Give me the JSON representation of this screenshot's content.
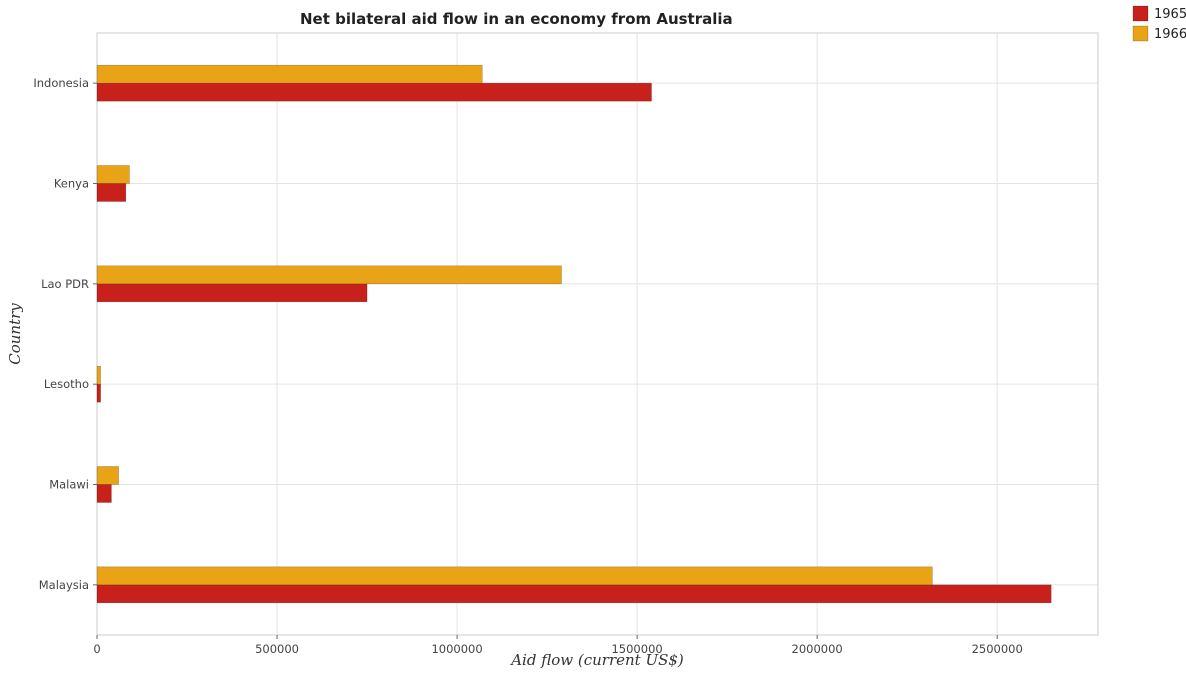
{
  "chart_data": {
    "type": "bar",
    "orientation": "horizontal",
    "title": "Net bilateral aid flow in an economy from Australia",
    "xlabel": "Aid flow (current US$)",
    "ylabel": "Country",
    "categories": [
      "Indonesia",
      "Kenya",
      "Lao PDR",
      "Lesotho",
      "Malawi",
      "Malaysia"
    ],
    "series": [
      {
        "name": "1965",
        "color": "#c8201a",
        "values": [
          1540000,
          80000,
          750000,
          10000,
          40000,
          2650000
        ]
      },
      {
        "name": "1966",
        "color": "#e8a317",
        "values": [
          1070000,
          90000,
          1290000,
          10000,
          60000,
          2320000
        ]
      }
    ],
    "xlim": [
      0,
      2780000
    ],
    "xticks": [
      0,
      500000,
      1000000,
      1500000,
      2000000,
      2500000
    ],
    "xtick_labels": [
      "0",
      "500000",
      "1000000",
      "1500000",
      "2000000",
      "2500000"
    ],
    "grid": true,
    "legend_position": "top-right"
  }
}
